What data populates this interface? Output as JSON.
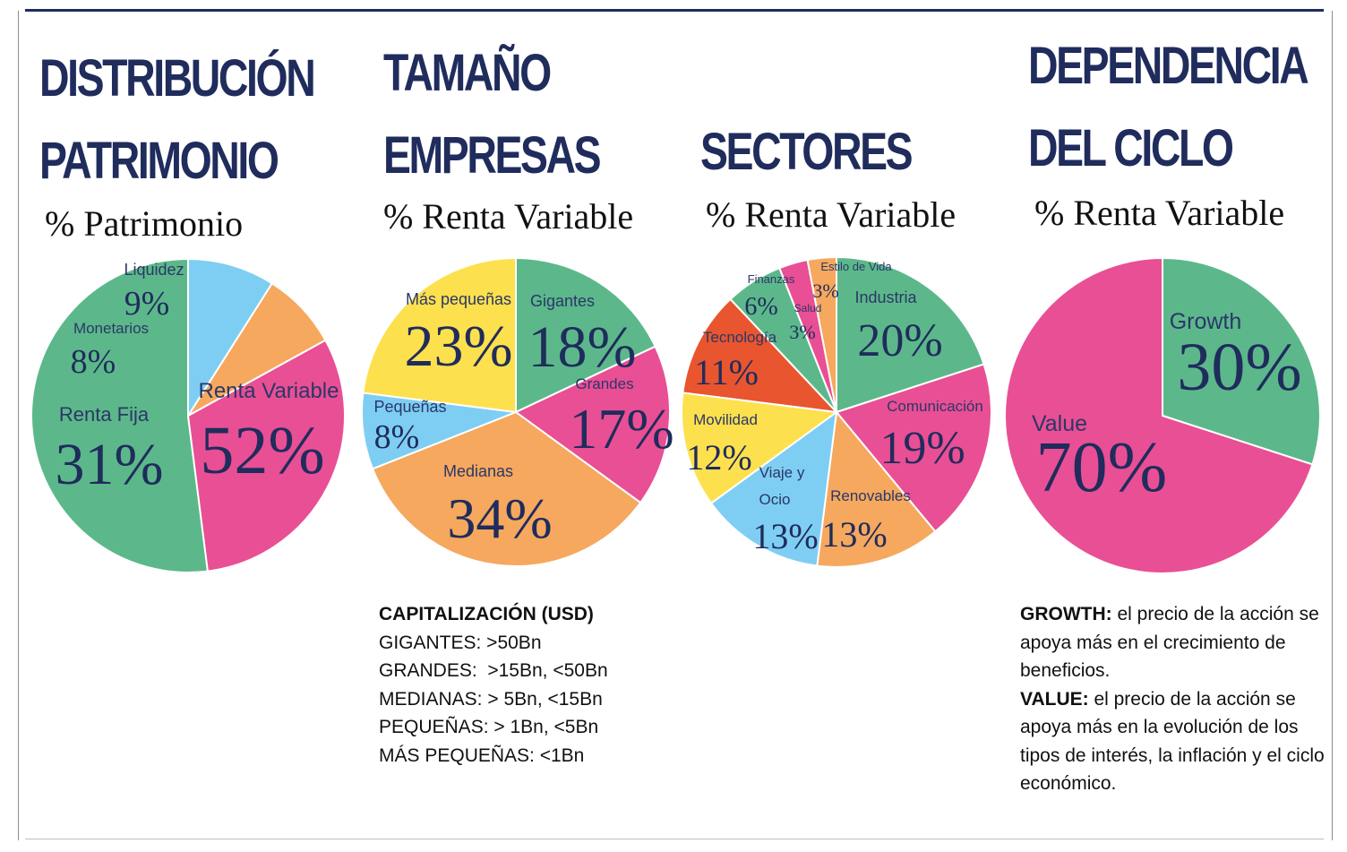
{
  "panels": [
    {
      "title_lines": [
        "DISTRIBUCIÓN",
        "PATRIMONIO"
      ],
      "subtitle": "% Patrimonio"
    },
    {
      "title_lines": [
        "TAMAÑO",
        "EMPRESAS"
      ],
      "subtitle": "% Renta Variable"
    },
    {
      "title_lines": [
        "SECTORES"
      ],
      "subtitle": "% Renta Variable"
    },
    {
      "title_lines": [
        "DEPENDENCIA",
        "DEL CICLO"
      ],
      "subtitle": "% Renta Variable"
    }
  ],
  "chart_data": [
    {
      "type": "pie",
      "slices": [
        {
          "label": "Renta Variable",
          "value": 52,
          "display": "52%",
          "color": "#5cb88a"
        },
        {
          "label": "Renta Fija",
          "value": 31,
          "display": "31%",
          "color": "#e94f94"
        },
        {
          "label": "Monetarios",
          "value": 8,
          "display": "8%",
          "color": "#f5a85e"
        },
        {
          "label": "Liquidez",
          "value": 9,
          "display": "9%",
          "color": "#7ecef3"
        }
      ]
    },
    {
      "type": "pie",
      "slices": [
        {
          "label": "Gigantes",
          "value": 18,
          "display": "18%",
          "color": "#5cb88a"
        },
        {
          "label": "Grandes",
          "value": 17,
          "display": "17%",
          "color": "#e94f94"
        },
        {
          "label": "Medianas",
          "value": 34,
          "display": "34%",
          "color": "#f5a85e"
        },
        {
          "label": "Pequeñas",
          "value": 8,
          "display": "8%",
          "color": "#7ecef3"
        },
        {
          "label": "Más pequeñas",
          "value": 23,
          "display": "23%",
          "color": "#fde04d"
        }
      ]
    },
    {
      "type": "pie",
      "slices": [
        {
          "label": "Industria",
          "value": 20,
          "display": "20%",
          "color": "#5cb88a"
        },
        {
          "label": "Comunicación",
          "value": 19,
          "display": "19%",
          "color": "#e94f94"
        },
        {
          "label": "Renovables",
          "value": 13,
          "display": "13%",
          "color": "#f5a85e"
        },
        {
          "label": "Viaje y Ocio",
          "value": 13,
          "display": "13%",
          "color": "#7ecef3"
        },
        {
          "label": "Movilidad",
          "value": 12,
          "display": "12%",
          "color": "#fde04d"
        },
        {
          "label": "Tecnología",
          "value": 11,
          "display": "11%",
          "color": "#e8552f"
        },
        {
          "label": "Finanzas",
          "value": 6,
          "display": "6%",
          "color": "#5cb88a"
        },
        {
          "label": "Salud",
          "value": 3,
          "display": "3%",
          "color": "#e94f94"
        },
        {
          "label": "Estilo de Vida",
          "value": 3,
          "display": "3%",
          "color": "#f5a85e"
        }
      ]
    },
    {
      "type": "pie",
      "slices": [
        {
          "label": "Growth",
          "value": 30,
          "display": "30%",
          "color": "#5cb88a"
        },
        {
          "label": "Value",
          "value": 70,
          "display": "70%",
          "color": "#e94f94"
        }
      ]
    }
  ],
  "cap_notes": {
    "heading": "CAPITALIZACIÓN (USD)",
    "lines": [
      "GIGANTES: >50Bn",
      "GRANDES:  >15Bn, <50Bn",
      "MEDIANAS: > 5Bn, <15Bn",
      "PEQUEÑAS: > 1Bn, <5Bn",
      "MÁS PEQUEÑAS: <1Bn"
    ]
  },
  "cycle_notes": [
    {
      "term": "GROWTH:",
      "text": " el precio de la acción se apoya más en el crecimiento de beneficios."
    },
    {
      "term": "VALUE:",
      "text": " el precio de la acción se apoya más en la evolución de los tipos de interés, la inflación y el ciclo económico."
    }
  ],
  "colors": {
    "title": "#1f2c5c",
    "value_text": "#1f2c5c",
    "label_text": "#2b3768"
  }
}
